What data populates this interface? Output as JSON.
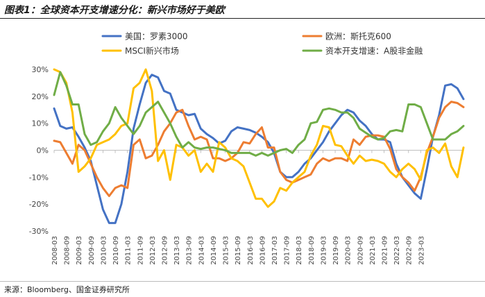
{
  "title": "图表1：全球资本开支增速分化：新兴市场好于美欧",
  "source": "来源：Bloomberg、国金证券研究所",
  "chart_data": {
    "type": "line",
    "ylim": [
      -0.3,
      0.3
    ],
    "yticks": [
      -0.3,
      -0.2,
      -0.1,
      0,
      0.1,
      0.2,
      0.3
    ],
    "ytick_labels": [
      "-30%",
      "-20%",
      "-10%",
      "0%",
      "10%",
      "20%",
      "30%"
    ],
    "x_start": "2008-03",
    "x_labels": [
      "2008-03",
      "2008-09",
      "2009-03",
      "2009-09",
      "2010-03",
      "2010-09",
      "2011-03",
      "2011-09",
      "2012-03",
      "2012-09",
      "2013-03",
      "2013-09",
      "2014-03",
      "2014-09",
      "2015-03",
      "2015-09",
      "2016-03",
      "2016-09",
      "2017-03",
      "2017-09",
      "2018-03",
      "2018-09",
      "2019-03",
      "2019-09",
      "2020-03",
      "2020-09",
      "2021-03",
      "2021-09",
      "2022-03",
      "2022-09",
      "2023-03"
    ],
    "grid": false,
    "legend_position": "top",
    "series": [
      {
        "name": "美国：罗素3000",
        "color": "#4472C4",
        "values": [
          0.155,
          0.09,
          0.08,
          0.085,
          0.05,
          0.01,
          -0.04,
          -0.13,
          -0.22,
          -0.27,
          -0.27,
          -0.2,
          -0.08,
          0.08,
          0.17,
          0.25,
          0.28,
          0.27,
          0.22,
          0.21,
          0.15,
          0.14,
          0.13,
          0.135,
          0.08,
          0.06,
          0.045,
          0.025,
          0.035,
          0.07,
          0.085,
          0.08,
          0.075,
          0.065,
          0.05,
          0.03,
          -0.01,
          -0.08,
          -0.1,
          -0.1,
          -0.08,
          -0.05,
          -0.03,
          0.0,
          0.03,
          0.07,
          0.1,
          0.13,
          0.15,
          0.14,
          0.11,
          0.09,
          0.06,
          0.04,
          0.04,
          0.03,
          -0.05,
          -0.1,
          -0.13,
          -0.16,
          -0.18,
          -0.07,
          0.05,
          0.13,
          0.24,
          0.245,
          0.23,
          0.19
        ]
      },
      {
        "name": "欧洲：斯托克600",
        "color": "#ED7D31",
        "values": [
          0.035,
          0.03,
          -0.01,
          -0.05,
          0.02,
          0.0,
          -0.05,
          -0.1,
          -0.14,
          -0.17,
          -0.14,
          -0.13,
          -0.14,
          0.02,
          0.04,
          -0.03,
          -0.02,
          0.02,
          0.07,
          0.1,
          0.14,
          0.15,
          0.09,
          0.04,
          0.05,
          0.04,
          -0.03,
          -0.03,
          -0.04,
          -0.03,
          -0.01,
          0.03,
          0.025,
          0.06,
          0.085,
          0.01,
          0.01,
          -0.08,
          -0.11,
          -0.12,
          -0.11,
          -0.1,
          -0.09,
          -0.05,
          -0.03,
          -0.04,
          -0.03,
          -0.03,
          -0.04,
          0.04,
          0.02,
          0.05,
          0.055,
          0.055,
          0.05,
          0.005,
          -0.07,
          -0.1,
          -0.12,
          -0.15,
          -0.1,
          -0.01,
          0.05,
          0.12,
          0.16,
          0.18,
          0.175,
          0.16
        ]
      },
      {
        "name": "MSCI新兴市场",
        "color": "#FFC000",
        "values": [
          0.3,
          0.29,
          0.25,
          0.14,
          -0.08,
          -0.06,
          -0.03,
          0.02,
          0.03,
          0.04,
          0.06,
          0.09,
          0.1,
          0.23,
          0.25,
          0.3,
          0.22,
          -0.04,
          0.0,
          -0.11,
          0.02,
          0.01,
          -0.02,
          0.0,
          -0.08,
          -0.05,
          -0.08,
          0.03,
          0.01,
          -0.03,
          -0.04,
          -0.06,
          -0.12,
          -0.18,
          -0.18,
          -0.21,
          -0.19,
          -0.14,
          -0.15,
          -0.12,
          -0.1,
          -0.08,
          -0.02,
          0.02,
          0.09,
          0.085,
          0.02,
          0.015,
          -0.02,
          -0.05,
          -0.02,
          -0.04,
          -0.035,
          -0.04,
          -0.05,
          -0.08,
          -0.1,
          -0.07,
          -0.05,
          -0.07,
          -0.11,
          0.0,
          0.01,
          -0.01,
          0.025,
          -0.06,
          -0.1,
          0.01
        ]
      },
      {
        "name": "资本开支增速：A股非金融",
        "color": "#70AD47",
        "values": [
          0.205,
          0.29,
          0.24,
          0.17,
          0.17,
          0.06,
          0.02,
          0.03,
          0.07,
          0.1,
          0.16,
          0.12,
          0.09,
          0.06,
          0.09,
          0.14,
          0.16,
          0.18,
          0.14,
          0.1,
          0.05,
          0.01,
          0.03,
          0.01,
          0.005,
          0.01,
          0.01,
          0.005,
          0.0,
          -0.01,
          -0.01,
          -0.01,
          -0.01,
          -0.02,
          -0.01,
          -0.02,
          -0.01,
          0.0,
          0.005,
          -0.01,
          0.02,
          0.04,
          0.1,
          0.105,
          0.15,
          0.155,
          0.15,
          0.14,
          0.14,
          0.12,
          0.08,
          0.065,
          0.05,
          0.04,
          0.045,
          0.07,
          0.075,
          0.07,
          0.17,
          0.17,
          0.16,
          0.1,
          0.04,
          0.04,
          0.04,
          0.06,
          0.07,
          0.09
        ]
      }
    ]
  }
}
